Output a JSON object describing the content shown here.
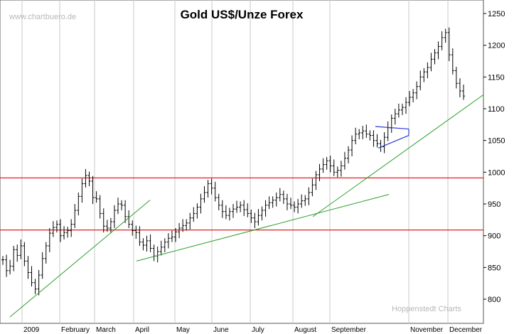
{
  "watermark": "www.chartbuero.de",
  "credit": "Hoppenstedt Charts",
  "chart_data": {
    "type": "ohlc",
    "title": "Gold US$/Unze Forex",
    "xlabel": "",
    "ylabel": "",
    "ylim": [
      770,
      1270
    ],
    "yticks": [
      800,
      850,
      900,
      950,
      1000,
      1050,
      1100,
      1150,
      1200,
      1250
    ],
    "grid": "vertical month separators",
    "months": [
      "2009",
      "February",
      "March",
      "April",
      "May",
      "June",
      "July",
      "August",
      "September",
      "November",
      "December"
    ],
    "horizontal_levels": [
      991,
      909
    ],
    "trendlines": [
      {
        "color": "#2a9d2a",
        "from": [
          "early Jan",
          775
        ],
        "to": [
          "mid Apr",
          955
        ]
      },
      {
        "color": "#2a9d2a",
        "from": [
          "mid Apr",
          860
        ],
        "to": [
          "early Oct",
          965
        ]
      },
      {
        "color": "#2a9d2a",
        "from": [
          "late Aug",
          935
        ],
        "to": [
          "end Dec",
          1125
        ]
      },
      {
        "color": "#2a3ad0",
        "pattern": "triangle",
        "from": [
          "mid Sep",
          1068
        ],
        "to": [
          "early Oct",
          1052
        ]
      }
    ],
    "series": [
      {
        "values": [
          862,
          845,
          852,
          878,
          869,
          884,
          860,
          842,
          826,
          816,
          838,
          864,
          884,
          904,
          913,
          918,
          900,
          905,
          908,
          918,
          940,
          962,
          982,
          995,
          986,
          960,
          958,
          935,
          915,
          912,
          922,
          940,
          950,
          948,
          930,
          918,
          908,
          905,
          890,
          885,
          892,
          880,
          868,
          875,
          882,
          890,
          896,
          898,
          906,
          912,
          916,
          920,
          928,
          935,
          945,
          958,
          968,
          982,
          975,
          960,
          948,
          938,
          932,
          938,
          942,
          945,
          948,
          941,
          935,
          928,
          922,
          932,
          940,
          948,
          952,
          956,
          960,
          965,
          958,
          950,
          948,
          945,
          950,
          955,
          958,
          968,
          980,
          996,
          1005,
          1012,
          1018,
          1010,
          1000,
          1003,
          1010,
          1022,
          1035,
          1050,
          1060,
          1062,
          1065,
          1060,
          1058,
          1050,
          1045,
          1040,
          1055,
          1070,
          1085,
          1092,
          1098,
          1102,
          1110,
          1118,
          1125,
          1135,
          1150,
          1158,
          1165,
          1178,
          1188,
          1198,
          1212,
          1220,
          1185,
          1160,
          1140,
          1128,
          1120
        ]
      }
    ]
  }
}
